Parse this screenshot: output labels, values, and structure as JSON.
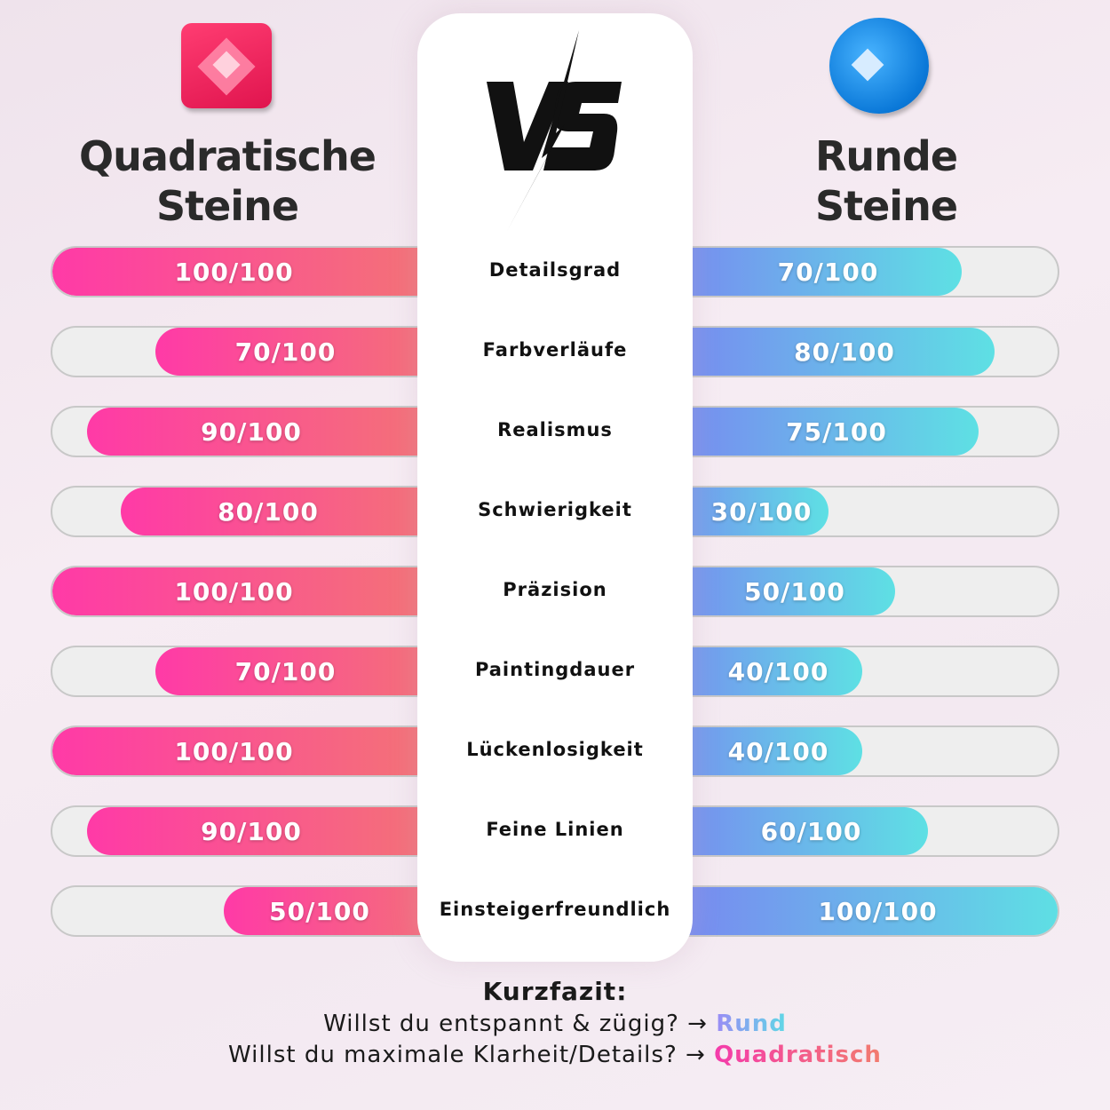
{
  "left": {
    "title_line1": "Quadratische",
    "title_line2": "Steine",
    "icon": "square-gem-icon",
    "color_start": "#ff3aa7",
    "color_end": "#f27a70"
  },
  "right": {
    "title_line1": "Runde",
    "title_line2": "Steine",
    "icon": "round-gem-icon",
    "color_start": "#7b7ff2",
    "color_end": "#5ee0e4"
  },
  "center": {
    "logo": "VS"
  },
  "chart_data": {
    "type": "bar",
    "categories": [
      "Detailsgrad",
      "Farbverläufe",
      "Realismus",
      "Schwierigkeit",
      "Präzision",
      "Paintingdauer",
      "Lückenlosigkeit",
      "Feine Linien",
      "Einsteigerfreundlich"
    ],
    "max": 100,
    "series": [
      {
        "name": "Quadratische Steine",
        "values": [
          100,
          70,
          90,
          80,
          100,
          70,
          100,
          90,
          50
        ],
        "labels": [
          "100/100",
          "70/100",
          "90/100",
          "80/100",
          "100/100",
          "70/100",
          "100/100",
          "90/100",
          "50/100"
        ]
      },
      {
        "name": "Runde Steine",
        "values": [
          70,
          80,
          75,
          30,
          50,
          40,
          40,
          60,
          100
        ],
        "labels": [
          "70/100",
          "80/100",
          "75/100",
          "30/100",
          "50/100",
          "40/100",
          "40/100",
          "60/100",
          "100/100"
        ]
      }
    ]
  },
  "summary": {
    "heading": "Kurzfazit:",
    "line1_text": "Willst du entspannt & zügig? → ",
    "line1_answer": "Rund",
    "line2_text": "Willst du maximale Klarheit/Details? → ",
    "line2_answer": "Quadratisch"
  }
}
